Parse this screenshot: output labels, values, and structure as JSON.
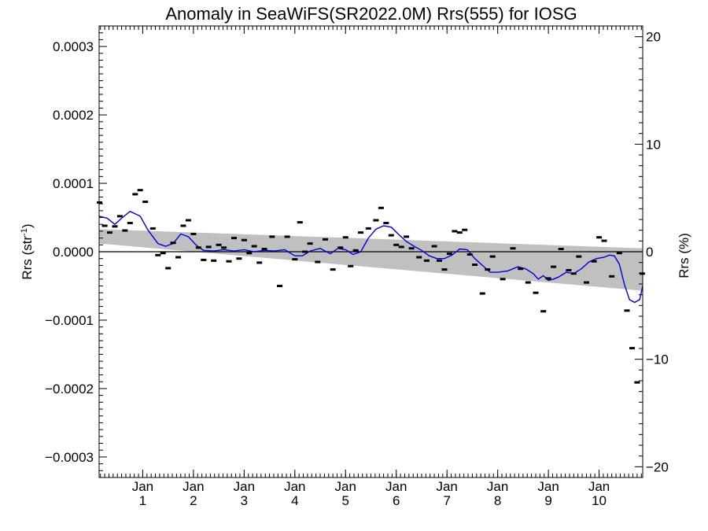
{
  "chart_data": {
    "type": "scatter",
    "title": "Anomaly in SeaWiFS(SR2022.0M) Rrs(555) for IOSG",
    "ylabel_left": "Rrs (str",
    "ylabel_left_sup": "-1",
    "ylabel_left_close": ")",
    "ylabel_right": "Rrs (%)",
    "xlim": [
      0.14,
      10.86
    ],
    "ylim": [
      -0.00033,
      0.00033
    ],
    "ylim_right": [
      -21.0,
      21.0
    ],
    "left_ticks": [
      {
        "v": 0.0003,
        "label": "0.0003"
      },
      {
        "v": 0.0002,
        "label": "0.0002"
      },
      {
        "v": 0.0001,
        "label": "0.0001"
      },
      {
        "v": 0.0,
        "label": "0.0000"
      },
      {
        "v": -0.0001,
        "label": "−0.0001"
      },
      {
        "v": -0.0002,
        "label": "−0.0002"
      },
      {
        "v": -0.0003,
        "label": "−0.0003"
      }
    ],
    "right_ticks": [
      {
        "v": 20,
        "label": "20"
      },
      {
        "v": 10,
        "label": "10"
      },
      {
        "v": 0,
        "label": "0"
      },
      {
        "v": -10,
        "label": "−10"
      },
      {
        "v": -20,
        "label": "−20"
      }
    ],
    "x_ticks": [
      {
        "x": 1,
        "month": "Jan",
        "label": "1"
      },
      {
        "x": 2,
        "month": "Jan",
        "label": "2"
      },
      {
        "x": 3,
        "month": "Jan",
        "label": "3"
      },
      {
        "x": 4,
        "month": "Jan",
        "label": "4"
      },
      {
        "x": 5,
        "month": "Jan",
        "label": "5"
      },
      {
        "x": 6,
        "month": "Jan",
        "label": "6"
      },
      {
        "x": 7,
        "month": "Jan",
        "label": "7"
      },
      {
        "x": 8,
        "month": "Jan",
        "label": "8"
      },
      {
        "x": 9,
        "month": "Jan",
        "label": "9"
      },
      {
        "x": 10,
        "month": "Jan",
        "label": "10"
      }
    ],
    "uncertainty_band": {
      "x": [
        0.14,
        10.86
      ],
      "upper": [
        3.3e-05,
        5e-06
      ],
      "lower": [
        1.2e-05,
        -5.7e-05
      ],
      "color": "#c0c0c0"
    },
    "zero_line": 0.0,
    "points": {
      "color": "#000000",
      "x": [
        0.15,
        0.25,
        0.35,
        0.45,
        0.55,
        0.65,
        0.75,
        0.85,
        0.95,
        1.05,
        1.2,
        1.3,
        1.4,
        1.5,
        1.6,
        1.7,
        1.8,
        1.9,
        2.0,
        2.1,
        2.2,
        2.3,
        2.4,
        2.5,
        2.6,
        2.7,
        2.8,
        2.9,
        3.0,
        3.1,
        3.2,
        3.3,
        3.4,
        3.55,
        3.7,
        3.85,
        4.0,
        4.1,
        4.2,
        4.3,
        4.45,
        4.6,
        4.75,
        4.9,
        5.0,
        5.1,
        5.2,
        5.3,
        5.45,
        5.6,
        5.7,
        5.8,
        5.9,
        6.0,
        6.1,
        6.2,
        6.3,
        6.45,
        6.6,
        6.75,
        6.85,
        6.95,
        7.05,
        7.15,
        7.25,
        7.35,
        7.45,
        7.55,
        7.7,
        7.8,
        7.9,
        8.1,
        8.3,
        8.45,
        8.6,
        8.75,
        8.9,
        9.0,
        9.1,
        9.25,
        9.4,
        9.5,
        9.6,
        9.75,
        9.9,
        10.0,
        10.1,
        10.25,
        10.4,
        10.55,
        10.65,
        10.75,
        10.85
      ],
      "y": [
        7.2e-05,
        3.8e-05,
        2.8e-05,
        3.7e-05,
        5.2e-05,
        3.1e-05,
        4.2e-05,
        8.4e-05,
        9e-05,
        7.3e-05,
        3.4e-05,
        -5e-06,
        -2e-06,
        -2.4e-05,
        1.3e-05,
        -8e-06,
        3.8e-05,
        4.6e-05,
        2.6e-05,
        6e-06,
        -1.2e-05,
        7e-06,
        -1.3e-05,
        1e-05,
        6e-06,
        -1.4e-05,
        2e-05,
        -1e-05,
        1.7e-05,
        -2e-06,
        8e-06,
        -1.6e-05,
        4e-06,
        2.2e-05,
        -5e-05,
        2.2e-05,
        -1.1e-05,
        4.3e-05,
        0.0,
        1.2e-05,
        -1.5e-05,
        1.8e-05,
        -2.6e-05,
        6e-06,
        2.1e-05,
        -2.1e-05,
        2e-06,
        2.8e-05,
        3.4e-05,
        4.6e-05,
        6.4e-05,
        4.2e-05,
        2.4e-05,
        1e-05,
        7e-06,
        2.2e-05,
        5e-06,
        -8e-06,
        -1.3e-05,
        8e-06,
        -1.3e-05,
        -2.6e-05,
        -3e-06,
        3e-05,
        2.8e-05,
        3.2e-05,
        -4e-06,
        -1.9e-05,
        -6.1e-05,
        -2.6e-05,
        -7e-06,
        -4e-05,
        5e-06,
        -2.5e-05,
        -4.5e-05,
        -6e-05,
        -8.7e-05,
        -3.9e-05,
        -2.2e-05,
        4e-06,
        -2.7e-05,
        -3.2e-05,
        -7e-06,
        -4.5e-05,
        -1.4e-05,
        2.1e-05,
        1.6e-05,
        -3.6e-05,
        -2e-06,
        -8.6e-05,
        -0.000141,
        -0.000191,
        -3.2e-05
      ]
    },
    "smoothed": {
      "color": "#0000dd",
      "x": [
        0.14,
        0.3,
        0.45,
        0.6,
        0.75,
        0.95,
        1.1,
        1.3,
        1.45,
        1.6,
        1.75,
        1.9,
        2.05,
        2.2,
        2.4,
        2.6,
        2.8,
        3.0,
        3.2,
        3.4,
        3.6,
        3.8,
        4.0,
        4.15,
        4.3,
        4.5,
        4.7,
        4.85,
        5.0,
        5.15,
        5.3,
        5.45,
        5.6,
        5.75,
        5.9,
        6.05,
        6.2,
        6.35,
        6.5,
        6.65,
        6.8,
        6.95,
        7.1,
        7.25,
        7.4,
        7.55,
        7.7,
        7.85,
        8.0,
        8.2,
        8.4,
        8.55,
        8.7,
        8.8,
        8.9,
        9.0,
        9.1,
        9.2,
        9.35,
        9.5,
        9.65,
        9.8,
        9.95,
        10.1,
        10.2,
        10.3,
        10.4,
        10.5,
        10.6,
        10.7,
        10.8,
        10.86
      ],
      "y": [
        5.2e-05,
        4.9e-05,
        4e-05,
        5e-05,
        5.9e-05,
        5.2e-05,
        3.2e-05,
        1.2e-05,
        8e-06,
        1.2e-05,
        2.6e-05,
        2.2e-05,
        1e-05,
        2e-06,
        1e-06,
        3e-06,
        1e-06,
        3e-06,
        0.0,
        2e-06,
        1e-06,
        3e-06,
        -6e-06,
        -6e-06,
        1e-06,
        5e-06,
        -3e-06,
        5e-06,
        3e-06,
        -4e-06,
        0.0,
        2e-05,
        3.3e-05,
        3.8e-05,
        3.6e-05,
        2.5e-05,
        1.5e-05,
        8e-06,
        2e-06,
        -6e-06,
        -1e-05,
        -1e-05,
        -5e-06,
        4e-06,
        3e-06,
        -1e-05,
        -2e-05,
        -3e-05,
        -3e-05,
        -2.8e-05,
        -2.2e-05,
        -2.5e-05,
        -3.2e-05,
        -4e-05,
        -3.5e-05,
        -4.2e-05,
        -4e-05,
        -3.7e-05,
        -3e-05,
        -3.2e-05,
        -2.5e-05,
        -1.5e-05,
        -1e-05,
        -8e-06,
        -5e-06,
        -6e-06,
        -1.8e-05,
        -4.8e-05,
        -7e-05,
        -7.4e-05,
        -7e-05,
        -5e-05
      ]
    },
    "grid": false,
    "legend": "none"
  }
}
